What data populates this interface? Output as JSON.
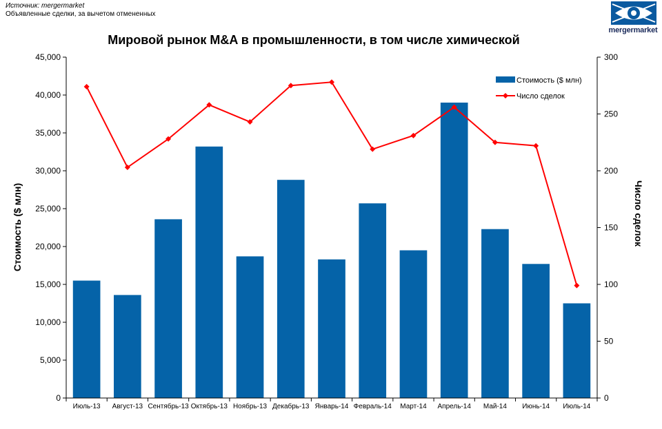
{
  "source": {
    "line1": "Источник: mergermarket",
    "line2": "Объявленные сделки, за вычетом отмененных"
  },
  "logo": {
    "text": "mergermarket"
  },
  "chart_data": {
    "type": "bar",
    "title": "Мировой рынок M&A в промышленности, в том числе химической",
    "categories": [
      "Июль-13",
      "Август-13",
      "Сентябрь-13",
      "Октябрь-13",
      "Ноябрь-13",
      "Декабрь-13",
      "Январь-14",
      "Февраль-14",
      "Март-14",
      "Апрель-14",
      "Май-14",
      "Июнь-14",
      "Июль-14"
    ],
    "ylabel": "Стоимость ($ млн)",
    "y2label": "Число сделок",
    "ylim": [
      0,
      45000
    ],
    "y2lim": [
      0,
      300
    ],
    "yticks": [
      "0",
      "5,000",
      "10,000",
      "15,000",
      "20,000",
      "25,000",
      "30,000",
      "35,000",
      "40,000",
      "45,000"
    ],
    "y2ticks": [
      "0",
      "50",
      "100",
      "150",
      "200",
      "250",
      "300"
    ],
    "series": [
      {
        "name": "Стоимость ($ млн)",
        "type": "bar",
        "axis": "left",
        "color": "#0563a8",
        "values": [
          15500,
          13600,
          23600,
          33200,
          18700,
          28800,
          18300,
          25700,
          19500,
          39000,
          22300,
          17700,
          12500
        ]
      },
      {
        "name": "Число сделок",
        "type": "line",
        "axis": "right",
        "color": "#ff0000",
        "values": [
          274,
          203,
          228,
          258,
          243,
          275,
          278,
          219,
          231,
          256,
          225,
          222,
          99
        ]
      }
    ],
    "legend": "top-right",
    "grid": false
  }
}
